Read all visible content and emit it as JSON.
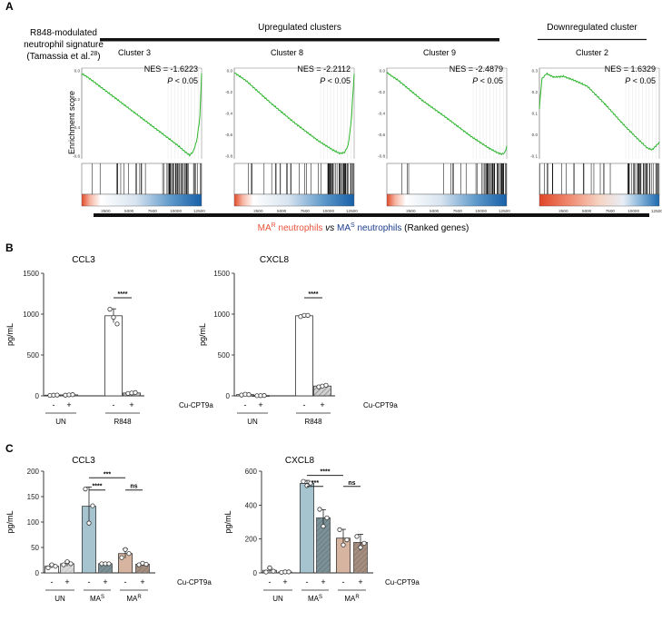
{
  "colors": {
    "curve": "#2bb52b",
    "mar": "#e8533a",
    "mas": "#1c3d8f",
    "ax": "#222222",
    "un_minus": "#ffffff",
    "un_plus": "#e0e0e0",
    "mas_minus": "#a6c4cf",
    "mas_plus": "#4f6f78",
    "mar_minus": "#d6b49f",
    "mar_plus": "#8d6a55",
    "r848_minus": "#ffffff",
    "r848_plus": "#bdbdbd"
  },
  "panelA": {
    "letter": "A",
    "signature_line1": "R848-modulated",
    "signature_line2": "neutrophil signature",
    "signature_line3": "(Tamassia et al.",
    "signature_ref": "28",
    "signature_close": ")",
    "upregulated": "Upregulated clusters",
    "downregulated": "Downregulated cluster",
    "enrichment_ylabel": "Enrichment score",
    "ranked_mar": "MA",
    "ranked_mar_sup": "R",
    "ranked_mar_rest": " neutrophils",
    "ranked_vs": "vs",
    "ranked_mas": "MA",
    "ranked_mas_sup": "S",
    "ranked_mas_rest": " neutrophils",
    "ranked_tail": "(Ranked genes)",
    "clusters": [
      {
        "title": "Cluster 3",
        "nes": "NES = -1.6223",
        "p_label": "P",
        "p_rest": " < 0.05",
        "yticks": [
          "0.0",
          "-0.2",
          "-0.4",
          "-0.6"
        ],
        "xticks": [
          "2500",
          "5000",
          "7500",
          "10000",
          "12500"
        ]
      },
      {
        "title": "Cluster 8",
        "nes": "NES = -2.2112",
        "p_label": "P",
        "p_rest": " < 0.05",
        "yticks": [
          "0.0",
          "-0.2",
          "-0.4",
          "-0.6",
          "-0.8"
        ],
        "xticks": [
          "2500",
          "5000",
          "7500",
          "10000",
          "12500"
        ]
      },
      {
        "title": "Cluster 9",
        "nes": "NES = -2.4879",
        "p_label": "P",
        "p_rest": " < 0.05",
        "yticks": [
          "0.0",
          "-0.2",
          "-0.4",
          "-0.6",
          "-0.8"
        ],
        "xticks": [
          "2500",
          "5000",
          "7500",
          "10000",
          "12500"
        ]
      },
      {
        "title": "Cluster 2",
        "nes": "NES = 1.6329",
        "p_label": "P",
        "p_rest": " < 0.05",
        "yticks": [
          "0.3",
          "0.2",
          "0.1",
          "0.0",
          "-0.1"
        ],
        "xticks": [
          "2500",
          "5000",
          "7500",
          "10000",
          "12500"
        ]
      }
    ]
  },
  "panelB": {
    "letter": "B"
  },
  "panelC": {
    "letter": "C"
  },
  "chart_data": [
    {
      "type": "bar",
      "panel": "B",
      "title": "CCL3",
      "ylabel": "pg/mL",
      "ylim": [
        0,
        1500
      ],
      "yticks": [
        "0",
        "500",
        "1000",
        "1500"
      ],
      "categories": [
        "-",
        "+",
        "-",
        "+"
      ],
      "groups": [
        "UN",
        "R848"
      ],
      "treatment_label": "Cu-CPT9a",
      "values": [
        8,
        12,
        980,
        35
      ],
      "errors": [
        3,
        4,
        85,
        6
      ],
      "points": [
        [
          5,
          8,
          10
        ],
        [
          8,
          12,
          15
        ],
        [
          1060,
          960,
          880
        ],
        [
          30,
          35,
          40
        ]
      ],
      "fills": [
        "r848_minus",
        "r848_plus",
        "r848_minus",
        "r848_plus"
      ],
      "significance": [
        {
          "label": "****",
          "from": 2,
          "to": 3,
          "y": 1200
        }
      ]
    },
    {
      "type": "bar",
      "panel": "B",
      "title": "CXCL8",
      "ylabel": "pg/mL",
      "ylim": [
        0,
        1500
      ],
      "yticks": [
        "0",
        "500",
        "1000",
        "1500"
      ],
      "categories": [
        "-",
        "+",
        "-",
        "+"
      ],
      "groups": [
        "UN",
        "R848"
      ],
      "treatment_label": "Cu-CPT9a",
      "values": [
        15,
        3,
        980,
        120
      ],
      "errors": [
        6,
        2,
        12,
        10
      ],
      "points": [
        [
          10,
          20,
          15
        ],
        [
          2,
          3,
          4
        ],
        [
          970,
          985,
          985
        ],
        [
          110,
          120,
          130
        ]
      ],
      "fills": [
        "r848_minus",
        "r848_plus",
        "r848_minus",
        "r848_plus"
      ],
      "significance": [
        {
          "label": "****",
          "from": 2,
          "to": 3,
          "y": 1200
        }
      ]
    },
    {
      "type": "bar",
      "panel": "C",
      "title": "CCL3",
      "ylabel": "pg/mL",
      "ylim": [
        0,
        200
      ],
      "yticks": [
        "0",
        "50",
        "100",
        "150",
        "200"
      ],
      "categories": [
        "-",
        "+",
        "-",
        "+",
        "-",
        "+"
      ],
      "groups": [
        "UN",
        "MA^S",
        "MA^R"
      ],
      "treatment_label": "Cu-CPT9a",
      "values": [
        13,
        18,
        131,
        18,
        38,
        17
      ],
      "errors": [
        4,
        5,
        38,
        1,
        9,
        2
      ],
      "points": [
        [
          10,
          16,
          13
        ],
        [
          16,
          22,
          18
        ],
        [
          165,
          98,
          132
        ],
        [
          18,
          18,
          18
        ],
        [
          30,
          46,
          38
        ],
        [
          16,
          19,
          17
        ]
      ],
      "fills": [
        "un_minus",
        "un_plus",
        "mas_minus",
        "mas_plus",
        "mar_minus",
        "mar_plus"
      ],
      "significance": [
        {
          "label": "***",
          "from": 2,
          "to": 4,
          "y": 187
        },
        {
          "label": "****",
          "from": 2,
          "to": 3,
          "y": 163
        },
        {
          "label": "ns",
          "from": 4,
          "to": 5,
          "y": 163
        }
      ]
    },
    {
      "type": "bar",
      "panel": "C",
      "title": "CXCL8",
      "ylabel": "pg/mL",
      "ylim": [
        0,
        600
      ],
      "yticks": [
        "0",
        "200",
        "400",
        "600"
      ],
      "categories": [
        "-",
        "+",
        "-",
        "+",
        "-",
        "+"
      ],
      "groups": [
        "UN",
        "MA^S",
        "MA^R"
      ],
      "treatment_label": "Cu-CPT9a",
      "values": [
        15,
        5,
        528,
        325,
        205,
        180
      ],
      "errors": [
        12,
        3,
        18,
        48,
        52,
        48
      ],
      "points": [
        [
          5,
          30,
          10
        ],
        [
          3,
          6,
          6
        ],
        [
          540,
          515,
          530
        ],
        [
          375,
          275,
          325
        ],
        [
          255,
          165,
          195
        ],
        [
          215,
          150,
          175
        ]
      ],
      "fills": [
        "un_minus",
        "un_plus",
        "mas_minus",
        "mas_plus",
        "mar_minus",
        "mar_plus"
      ],
      "significance": [
        {
          "label": "****",
          "from": 2,
          "to": 4,
          "y": 575
        },
        {
          "label": "***",
          "from": 2,
          "to": 3,
          "y": 510
        },
        {
          "label": "ns",
          "from": 4,
          "to": 5,
          "y": 510
        }
      ]
    }
  ]
}
